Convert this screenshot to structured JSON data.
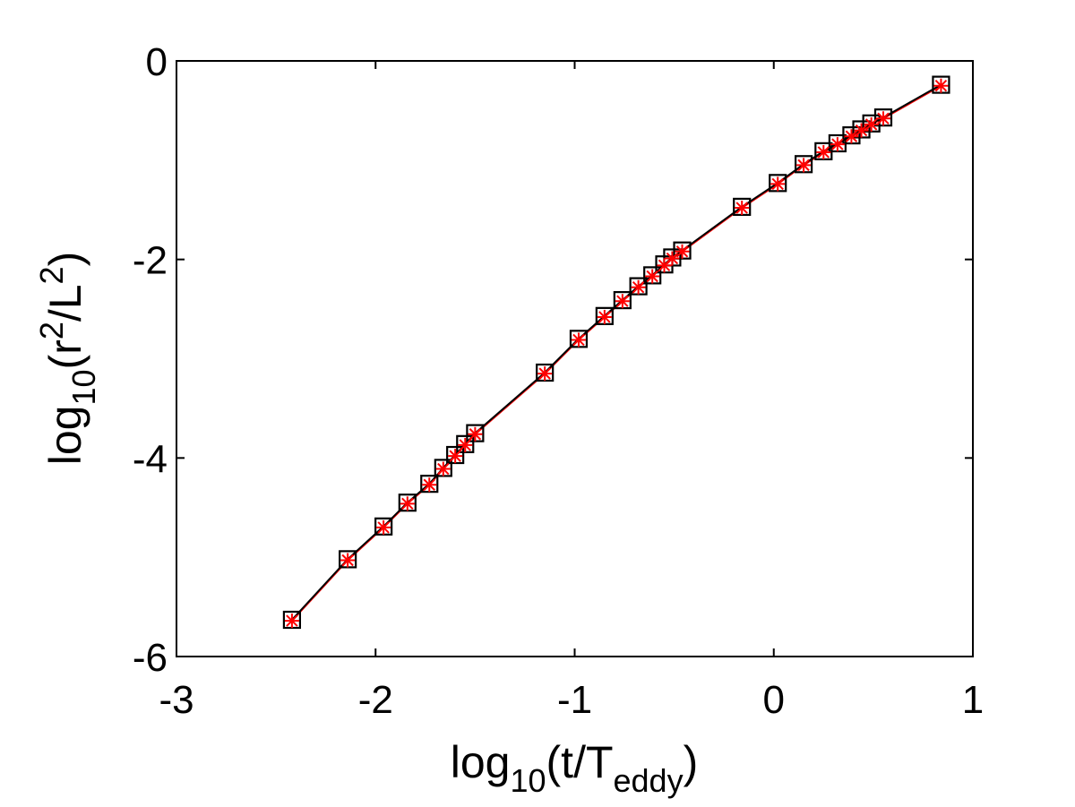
{
  "chart_data": {
    "type": "scatter",
    "title": "",
    "xlabel": {
      "prefix": "log",
      "prefix_sub": "10",
      "open": "(t/T",
      "sub": "eddy",
      "close": ")"
    },
    "ylabel": {
      "prefix": "log",
      "prefix_sub": "10",
      "open": "(r",
      "sup1": "2",
      "mid": "/L",
      "sup2": "2",
      "close": ")"
    },
    "xlim": [
      -3,
      1
    ],
    "ylim": [
      -6,
      0
    ],
    "xticks": [
      -3,
      -2,
      -1,
      0,
      1
    ],
    "yticks": [
      -6,
      -4,
      -2,
      0
    ],
    "grid": false,
    "legend": "none",
    "series": [
      {
        "marker": "square",
        "color": "#000000",
        "x": [
          -2.42,
          -2.14,
          -1.96,
          -1.84,
          -1.73,
          -1.66,
          -1.6,
          -1.55,
          -1.5,
          -1.15,
          -0.98,
          -0.85,
          -0.76,
          -0.68,
          -0.61,
          -0.55,
          -0.51,
          -0.46,
          -0.16,
          0.02,
          0.15,
          0.25,
          0.32,
          0.39,
          0.44,
          0.49,
          0.55,
          0.84
        ],
        "y": [
          -5.63,
          -5.02,
          -4.69,
          -4.45,
          -4.26,
          -4.1,
          -3.97,
          -3.86,
          -3.75,
          -3.14,
          -2.8,
          -2.57,
          -2.41,
          -2.27,
          -2.16,
          -2.05,
          -1.98,
          -1.91,
          -1.47,
          -1.23,
          -1.04,
          -0.91,
          -0.83,
          -0.75,
          -0.69,
          -0.63,
          -0.57,
          -0.24
        ]
      },
      {
        "marker": "asterisk",
        "color": "#ff0000",
        "x": [
          -2.42,
          -2.14,
          -1.96,
          -1.84,
          -1.73,
          -1.66,
          -1.6,
          -1.55,
          -1.5,
          -1.15,
          -0.98,
          -0.85,
          -0.76,
          -0.68,
          -0.61,
          -0.55,
          -0.51,
          -0.46,
          -0.16,
          0.02,
          0.15,
          0.25,
          0.32,
          0.39,
          0.44,
          0.49,
          0.55,
          0.84
        ],
        "y": [
          -5.64,
          -5.03,
          -4.7,
          -4.46,
          -4.27,
          -4.11,
          -3.98,
          -3.87,
          -3.76,
          -3.15,
          -2.81,
          -2.58,
          -2.42,
          -2.28,
          -2.17,
          -2.06,
          -1.99,
          -1.92,
          -1.48,
          -1.24,
          -1.05,
          -0.92,
          -0.84,
          -0.76,
          -0.7,
          -0.64,
          -0.58,
          -0.25
        ]
      }
    ]
  }
}
